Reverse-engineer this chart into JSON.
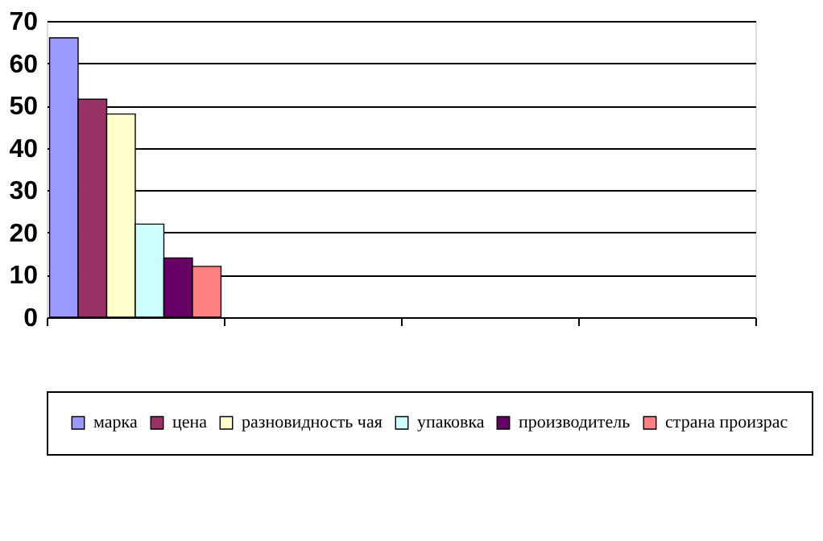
{
  "chart_data": {
    "type": "bar",
    "categories": [
      null,
      null,
      null,
      null
    ],
    "series": [
      {
        "name": "марка",
        "color": "#9999ff",
        "values": [
          66,
          null,
          null,
          null
        ]
      },
      {
        "name": "цена",
        "color": "#993366",
        "values": [
          51.5,
          null,
          null,
          null
        ]
      },
      {
        "name": "разновидность чая",
        "color": "#ffffcc",
        "values": [
          48,
          null,
          null,
          null
        ]
      },
      {
        "name": "упаковка",
        "color": "#ccffff",
        "values": [
          22,
          null,
          null,
          null
        ]
      },
      {
        "name": "производитель",
        "color": "#660066",
        "values": [
          14,
          null,
          null,
          null
        ]
      },
      {
        "name": "страна произрас",
        "color": "#ff8080",
        "values": [
          12,
          null,
          null,
          null
        ]
      }
    ],
    "ylim": [
      0,
      70
    ],
    "yticks": [
      0,
      10,
      20,
      30,
      40,
      50,
      60,
      70
    ],
    "grid": "y",
    "legend": "bottom",
    "tick_labels": "y"
  }
}
